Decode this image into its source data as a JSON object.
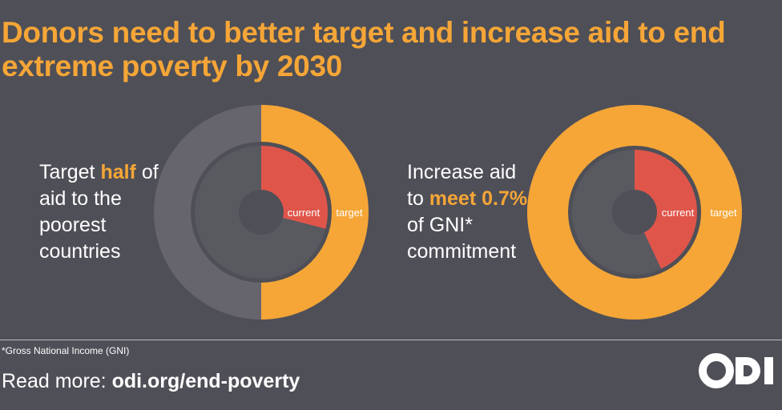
{
  "title": "Donors need to better target and increase aid to end extreme poverty by 2030",
  "colors": {
    "background": "#4f4f57",
    "accent": "#f5a637",
    "current": "#e0554a",
    "ring_grey": "#66656e",
    "inner_grey": "#595960",
    "hole": "#4f4f57"
  },
  "panels": [
    {
      "text_before": "Target ",
      "highlight": "half",
      "text_after": " of aid to the poorest countries"
    },
    {
      "text_before": "Increase aid to ",
      "highlight": "meet 0.7%",
      "text_after": " of GNI* commitment"
    }
  ],
  "chart_data": [
    {
      "type": "pie",
      "labels": {
        "inner": "current",
        "outer": "target"
      },
      "rings": [
        {
          "name": "target",
          "value": 0.5
        },
        {
          "name": "current",
          "value": 0.29
        }
      ]
    },
    {
      "type": "pie",
      "labels": {
        "inner": "current",
        "outer": "target"
      },
      "rings": [
        {
          "name": "target",
          "value": 1.0
        },
        {
          "name": "current",
          "value": 0.43
        }
      ]
    }
  ],
  "footer": {
    "footnote": "*Gross National Income (GNI)",
    "read_more_label": "Read more: ",
    "link": "odi.org/end-poverty",
    "logo_text": "ODI"
  }
}
